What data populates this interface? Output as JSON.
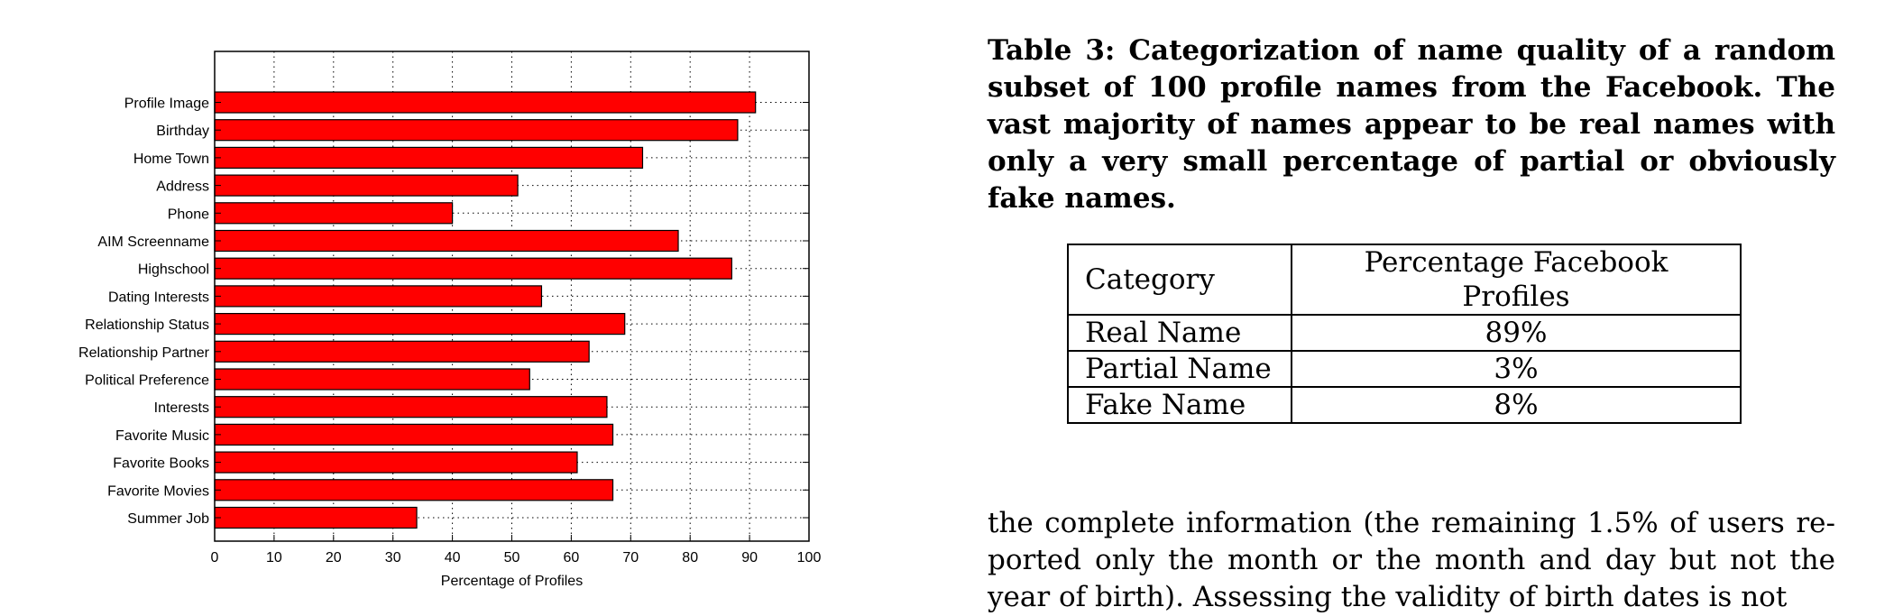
{
  "chart_data": {
    "type": "bar",
    "orientation": "horizontal",
    "categories": [
      "Profile Image",
      "Birthday",
      "Home Town",
      "Address",
      "Phone",
      "AIM Screenname",
      "Highschool",
      "Dating Interests",
      "Relationship Status",
      "Relationship Partner",
      "Political Preference",
      "Interests",
      "Favorite Music",
      "Favorite Books",
      "Favorite Movies",
      "Summer Job"
    ],
    "values": [
      91,
      88,
      72,
      51,
      40,
      78,
      87,
      55,
      69,
      63,
      53,
      66,
      67,
      61,
      67,
      34
    ],
    "xlabel": "Percentage of Profiles",
    "ylabel": "",
    "title": "",
    "xlim": [
      0,
      100
    ],
    "xticks": [
      "0",
      "10",
      "20",
      "30",
      "40",
      "50",
      "60",
      "70",
      "80",
      "90",
      "100"
    ],
    "grid": "dotted",
    "bar_color": "#ff0000"
  },
  "caption": {
    "lines": [
      "Table 3: Categorization of name quality of a random",
      "subset of 100 profile names from the Facebook. The",
      "vast majority of names appear to be real names with",
      "only a very small percentage of partial or obviously",
      "fake names."
    ]
  },
  "table": {
    "headers": [
      "Category",
      "Percentage Facebook Profiles"
    ],
    "rows": [
      [
        "Real Name",
        "89%"
      ],
      [
        "Partial Name",
        "3%"
      ],
      [
        "Fake Name",
        "8%"
      ]
    ]
  },
  "body_text": {
    "lines": [
      "the complete information (the remaining 1.5% of users re-",
      "ported only the month or the month and day but not the",
      "year of birth). Assessing the validity of birth dates is not"
    ]
  }
}
